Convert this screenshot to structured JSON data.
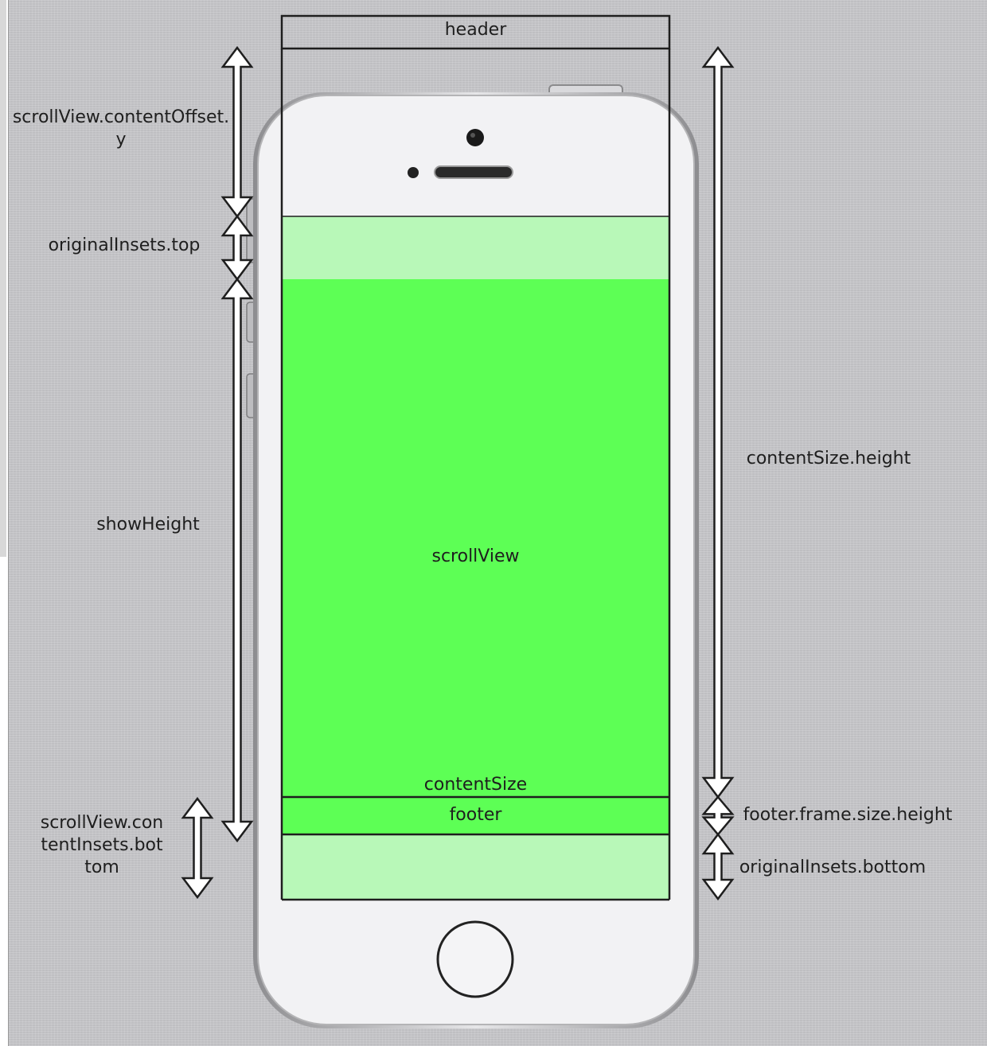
{
  "labels": {
    "header": "header",
    "scroll_view": "scrollView",
    "content_size": "contentSize",
    "footer": "footer",
    "content_offset_y": "scrollView.contentOffset.y",
    "original_insets_top": "originalInsets.top",
    "show_height": "showHeight",
    "content_insets_bottom": "scrollView.contentInsets.bottom",
    "content_size_height": "contentSize.height",
    "footer_height": "footer.frame.size.height",
    "original_insets_bottom": "originalInsets.bottom"
  },
  "colors": {
    "scroll_green": "#5dff55",
    "inset_light_green": "#b8f8b8",
    "phone_body": "#f2f2f4",
    "outline": "#1e1e1e"
  }
}
